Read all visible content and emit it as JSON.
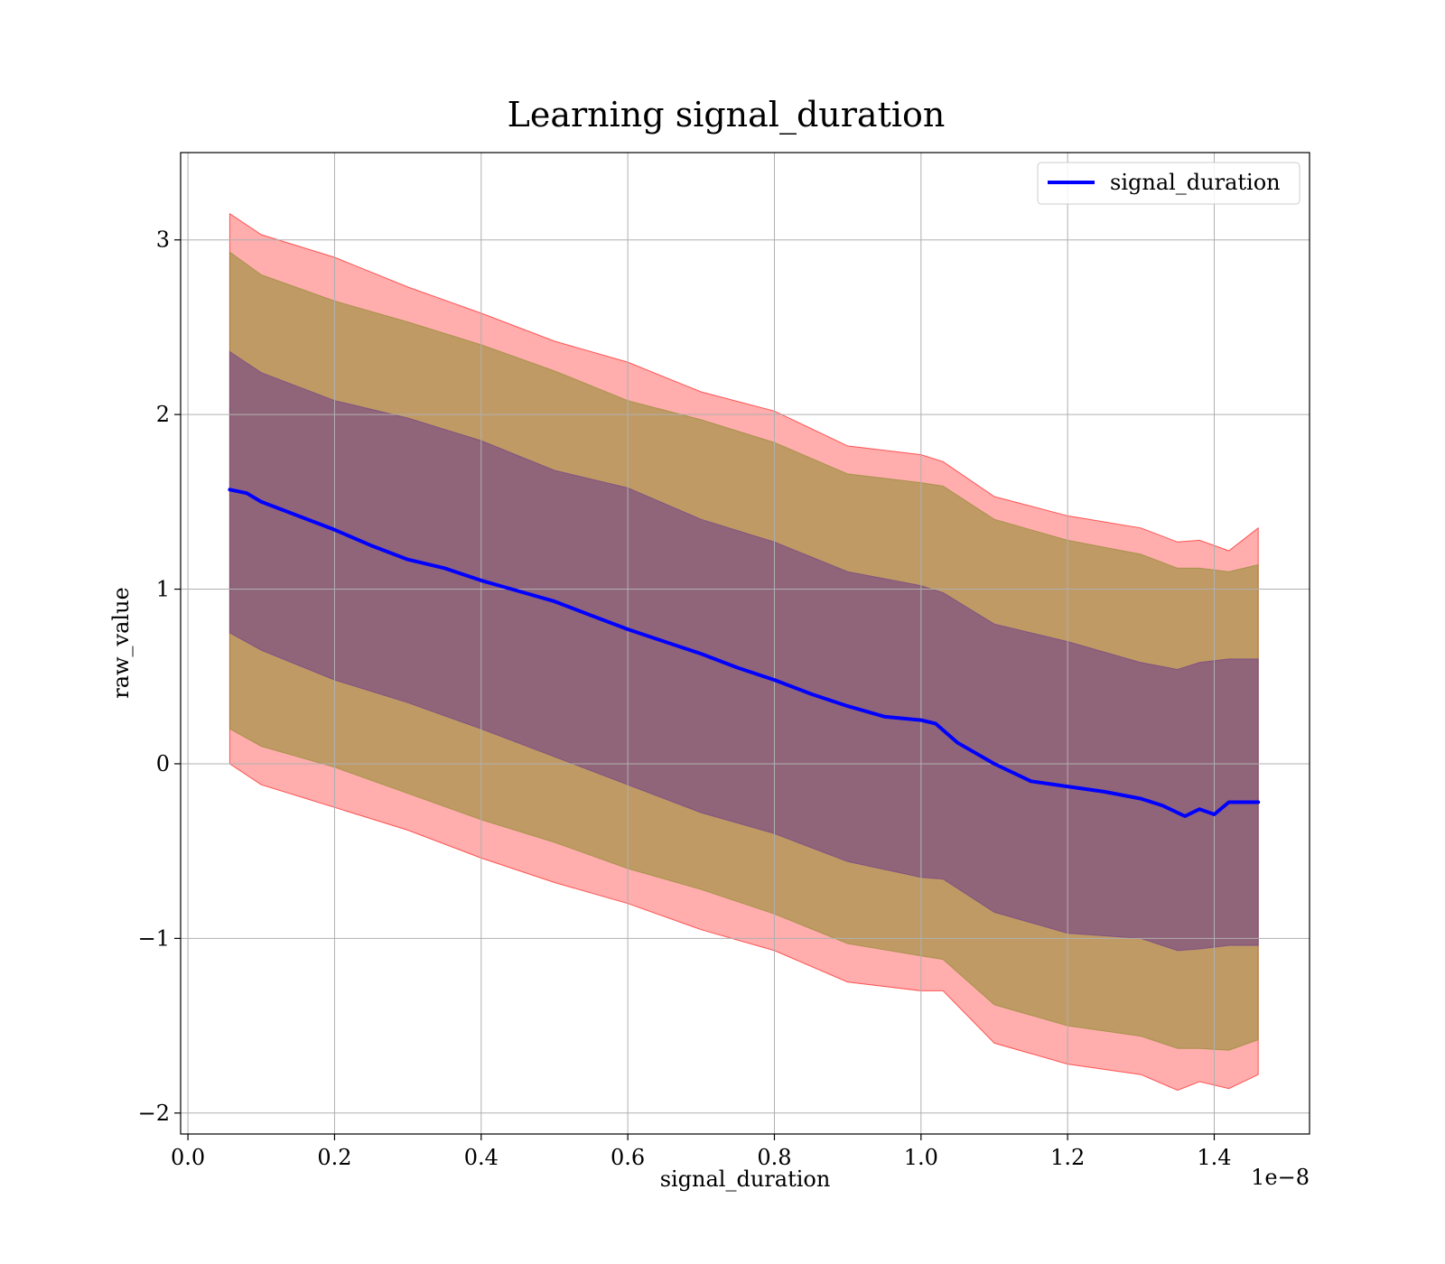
{
  "chart_data": {
    "type": "line",
    "title": "Learning signal_duration",
    "xlabel": "signal_duration",
    "ylabel": "raw_value",
    "x_offset_label": "1e−8",
    "xlim": [
      -0.01,
      1.53
    ],
    "ylim": [
      -2.12,
      3.5
    ],
    "x_ticks": [
      0.0,
      0.2,
      0.4,
      0.6,
      0.8,
      1.0,
      1.2,
      1.4
    ],
    "x_tick_labels": [
      "0.0",
      "0.2",
      "0.4",
      "0.6",
      "0.8",
      "1.0",
      "1.2",
      "1.4"
    ],
    "y_ticks": [
      -2,
      -1,
      0,
      1,
      2,
      3
    ],
    "y_tick_labels": [
      "−2",
      "−1",
      "0",
      "1",
      "2",
      "3"
    ],
    "grid": true,
    "legend_position": "top-right",
    "series": [
      {
        "name": "signal_duration",
        "color": "#0000ff",
        "x": [
          0.057,
          0.08,
          0.1,
          0.15,
          0.2,
          0.25,
          0.3,
          0.35,
          0.4,
          0.45,
          0.5,
          0.55,
          0.6,
          0.65,
          0.7,
          0.75,
          0.8,
          0.85,
          0.9,
          0.95,
          1.0,
          1.02,
          1.05,
          1.1,
          1.15,
          1.2,
          1.25,
          1.3,
          1.33,
          1.36,
          1.38,
          1.4,
          1.42,
          1.46
        ],
        "y": [
          1.57,
          1.55,
          1.5,
          1.42,
          1.34,
          1.25,
          1.17,
          1.12,
          1.05,
          0.99,
          0.93,
          0.85,
          0.77,
          0.7,
          0.63,
          0.55,
          0.48,
          0.4,
          0.33,
          0.27,
          0.25,
          0.23,
          0.12,
          0.0,
          -0.1,
          -0.13,
          -0.16,
          -0.2,
          -0.24,
          -0.3,
          -0.26,
          -0.29,
          -0.22,
          -0.22
        ]
      }
    ],
    "bands": [
      {
        "color": "#ff0000",
        "opacity": 0.32,
        "x": [
          0.057,
          0.1,
          0.2,
          0.3,
          0.4,
          0.5,
          0.6,
          0.7,
          0.8,
          0.9,
          1.0,
          1.03,
          1.1,
          1.2,
          1.3,
          1.35,
          1.38,
          1.42,
          1.46
        ],
        "upper": [
          3.15,
          3.03,
          2.9,
          2.73,
          2.58,
          2.42,
          2.3,
          2.13,
          2.02,
          1.82,
          1.77,
          1.73,
          1.53,
          1.42,
          1.35,
          1.27,
          1.28,
          1.22,
          1.35
        ],
        "lower": [
          0.0,
          -0.12,
          -0.25,
          -0.38,
          -0.54,
          -0.68,
          -0.8,
          -0.95,
          -1.07,
          -1.25,
          -1.3,
          -1.3,
          -1.6,
          -1.72,
          -1.78,
          -1.87,
          -1.82,
          -1.86,
          -1.78
        ]
      },
      {
        "color": "#8b8b2a",
        "opacity": 0.55,
        "x": [
          0.057,
          0.1,
          0.2,
          0.3,
          0.4,
          0.5,
          0.6,
          0.7,
          0.8,
          0.9,
          1.0,
          1.03,
          1.1,
          1.2,
          1.3,
          1.35,
          1.38,
          1.42,
          1.46
        ],
        "upper": [
          2.93,
          2.8,
          2.65,
          2.53,
          2.4,
          2.25,
          2.08,
          1.97,
          1.84,
          1.66,
          1.61,
          1.59,
          1.4,
          1.28,
          1.2,
          1.12,
          1.12,
          1.1,
          1.14
        ],
        "lower": [
          0.2,
          0.1,
          -0.02,
          -0.17,
          -0.32,
          -0.45,
          -0.6,
          -0.72,
          -0.86,
          -1.03,
          -1.1,
          -1.12,
          -1.38,
          -1.5,
          -1.56,
          -1.63,
          -1.63,
          -1.64,
          -1.58
        ]
      },
      {
        "color": "#6b3a8a",
        "opacity": 0.55,
        "x": [
          0.057,
          0.1,
          0.2,
          0.3,
          0.4,
          0.5,
          0.6,
          0.7,
          0.8,
          0.9,
          1.0,
          1.03,
          1.1,
          1.2,
          1.3,
          1.35,
          1.38,
          1.42,
          1.46
        ],
        "upper": [
          2.36,
          2.24,
          2.08,
          1.98,
          1.85,
          1.68,
          1.58,
          1.4,
          1.27,
          1.1,
          1.02,
          0.98,
          0.8,
          0.7,
          0.58,
          0.54,
          0.58,
          0.6,
          0.6
        ],
        "lower": [
          0.75,
          0.65,
          0.48,
          0.35,
          0.2,
          0.04,
          -0.12,
          -0.28,
          -0.4,
          -0.56,
          -0.65,
          -0.66,
          -0.85,
          -0.97,
          -1.0,
          -1.07,
          -1.06,
          -1.04,
          -1.04
        ]
      }
    ]
  }
}
